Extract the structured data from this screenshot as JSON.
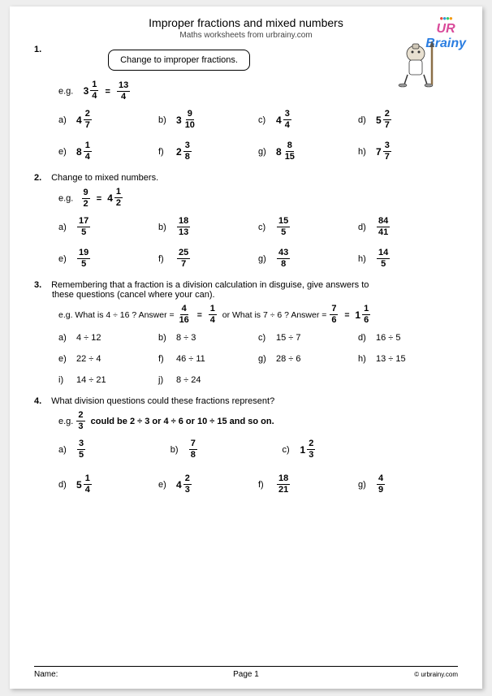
{
  "header": {
    "title": "Improper fractions and mixed numbers",
    "subtitle": "Maths worksheets from urbrainy.com",
    "logo_ur": "UR",
    "logo_brainy": "Brainy"
  },
  "q1": {
    "num": "1.",
    "instruction": "Change to improper fractions.",
    "example_prefix": "e.g.",
    "example_whole": "3",
    "example_fn": "1",
    "example_fd": "4",
    "example_rn": "13",
    "example_rd": "4",
    "items": [
      {
        "l": "a)",
        "w": "4",
        "n": "2",
        "d": "7"
      },
      {
        "l": "b)",
        "w": "3",
        "n": "9",
        "d": "10"
      },
      {
        "l": "c)",
        "w": "4",
        "n": "3",
        "d": "4"
      },
      {
        "l": "d)",
        "w": "5",
        "n": "2",
        "d": "7"
      },
      {
        "l": "e)",
        "w": "8",
        "n": "1",
        "d": "4"
      },
      {
        "l": "f)",
        "w": "2",
        "n": "3",
        "d": "8"
      },
      {
        "l": "g)",
        "w": "8",
        "n": "8",
        "d": "15"
      },
      {
        "l": "h)",
        "w": "7",
        "n": "3",
        "d": "7"
      }
    ]
  },
  "q2": {
    "num": "2.",
    "text": "Change to mixed numbers.",
    "example_prefix": "e.g.",
    "ex_n": "9",
    "ex_d": "2",
    "ex_w": "4",
    "ex_rn": "1",
    "ex_rd": "2",
    "items": [
      {
        "l": "a)",
        "n": "17",
        "d": "5"
      },
      {
        "l": "b)",
        "n": "18",
        "d": "13"
      },
      {
        "l": "c)",
        "n": "15",
        "d": "5"
      },
      {
        "l": "d)",
        "n": "84",
        "d": "41"
      },
      {
        "l": "e)",
        "n": "19",
        "d": "5"
      },
      {
        "l": "f)",
        "n": "25",
        "d": "7"
      },
      {
        "l": "g)",
        "n": "43",
        "d": "8"
      },
      {
        "l": "h)",
        "n": "14",
        "d": "5"
      }
    ]
  },
  "q3": {
    "num": "3.",
    "text1": "Remembering that a fraction is a division calculation in disguise, give answers to",
    "text2": "these questions (cancel where your can).",
    "ex_p1": "e.g.  What is  4  ÷  16 ?   Answer  =",
    "ex_f1n": "4",
    "ex_f1d": "16",
    "ex_eq1": "=",
    "ex_f2n": "1",
    "ex_f2d": "4",
    "ex_mid": "or  What is  7  ÷  6 ?    Answer  =",
    "ex_f3n": "7",
    "ex_f3d": "6",
    "ex_eq2": "=",
    "ex_w": "1",
    "ex_rn": "1",
    "ex_rd": "6",
    "items": [
      {
        "l": "a)",
        "t": "4  ÷  12"
      },
      {
        "l": "b)",
        "t": "8  ÷  3"
      },
      {
        "l": "c)",
        "t": "15  ÷  7"
      },
      {
        "l": "d)",
        "t": "16  ÷  5"
      },
      {
        "l": "e)",
        "t": "22  ÷  4"
      },
      {
        "l": "f)",
        "t": "46  ÷  11"
      },
      {
        "l": "g)",
        "t": "28  ÷  6"
      },
      {
        "l": "h)",
        "t": "13  ÷  15"
      },
      {
        "l": "i)",
        "t": "14  ÷  21"
      },
      {
        "l": "j)",
        "t": "8  ÷  24"
      }
    ]
  },
  "q4": {
    "num": "4.",
    "text": "What division questions could these fractions represent?",
    "ex_prefix": "e.g.",
    "ex_n": "2",
    "ex_d": "3",
    "ex_text": "could be  2 ÷ 3 or  4  ÷  6   or  10  ÷  15  and so on.",
    "row1": [
      {
        "l": "a)",
        "type": "f",
        "n": "3",
        "d": "5"
      },
      {
        "l": "b)",
        "type": "f",
        "n": "7",
        "d": "8"
      },
      {
        "l": "c)",
        "type": "m",
        "w": "1",
        "n": "2",
        "d": "3"
      }
    ],
    "row2": [
      {
        "l": "d)",
        "type": "m",
        "w": "5",
        "n": "1",
        "d": "4"
      },
      {
        "l": "e)",
        "type": "m",
        "w": "4",
        "n": "2",
        "d": "3"
      },
      {
        "l": "f)",
        "type": "f",
        "n": "18",
        "d": "21"
      },
      {
        "l": "g)",
        "type": "f",
        "n": "4",
        "d": "9"
      }
    ]
  },
  "footer": {
    "name": "Name:",
    "page": "Page 1",
    "copy": "© urbrainy.com"
  }
}
